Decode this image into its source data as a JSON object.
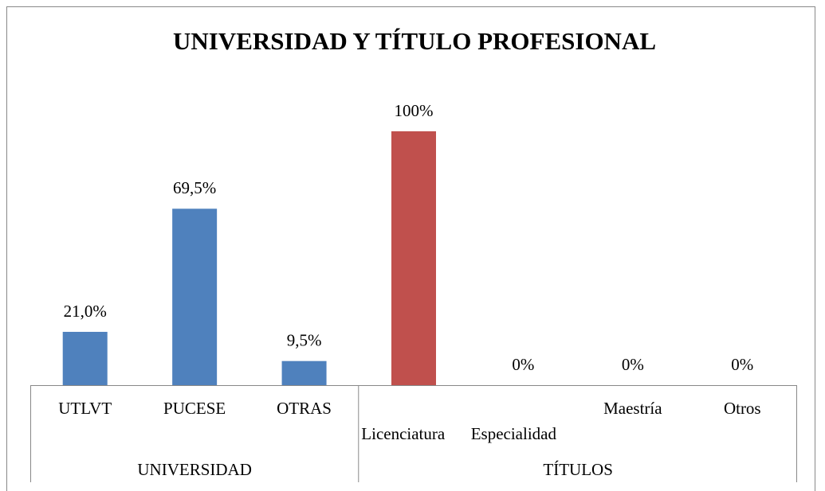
{
  "chart_data": {
    "type": "bar",
    "title": "UNIVERSIDAD Y TÍTULO PROFESIONAL",
    "ylim": [
      0,
      100
    ],
    "groups": [
      {
        "name": "UNIVERSIDAD",
        "color": "#4f81bd",
        "categories": [
          "UTLVT",
          "PUCESE",
          "OTRAS"
        ],
        "values": [
          21.0,
          69.5,
          9.5
        ],
        "value_labels": [
          "21,0%",
          "69,5%",
          "9,5%"
        ]
      },
      {
        "name": "TÍTULOS",
        "color": "#c0504d",
        "categories": [
          "Licenciatura",
          "Especialidad",
          "Maestría",
          "Otros"
        ],
        "values": [
          100,
          0,
          0,
          0
        ],
        "value_labels": [
          "100%",
          "0%",
          "0%",
          "0%"
        ]
      }
    ]
  }
}
